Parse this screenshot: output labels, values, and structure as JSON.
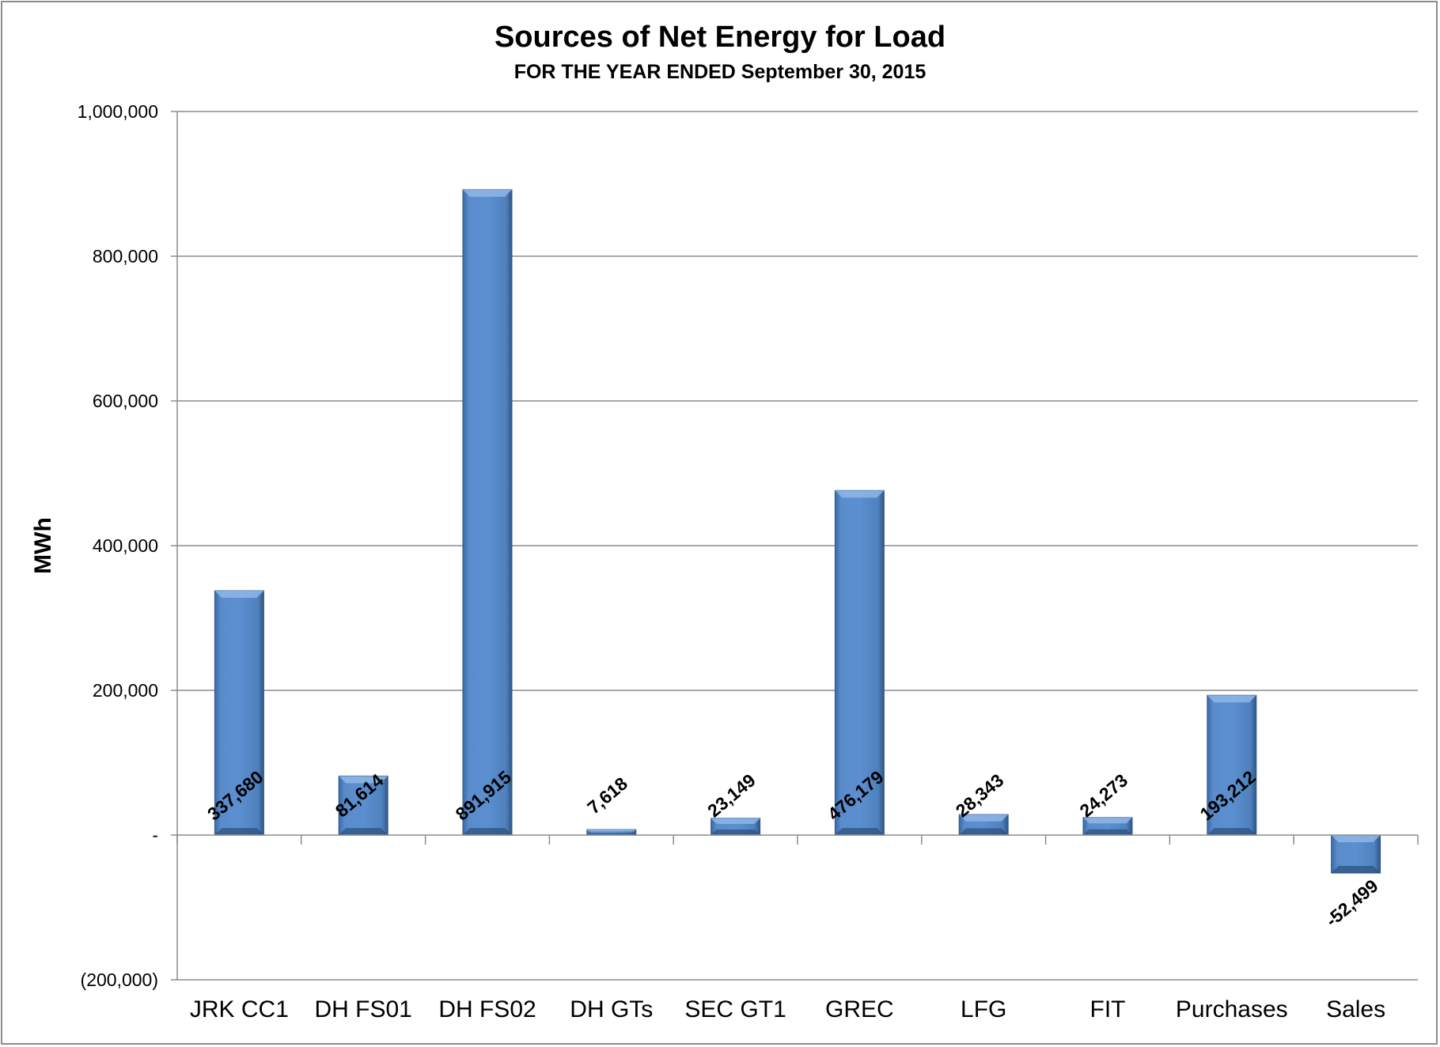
{
  "chart_data": {
    "type": "bar",
    "title": "Sources of Net Energy for Load",
    "subtitle": "FOR THE YEAR ENDED September 30, 2015",
    "ylabel": "MWh",
    "xlabel": "",
    "ylim": [
      -200000,
      1000000
    ],
    "yticks": [
      1000000,
      800000,
      600000,
      400000,
      200000,
      0,
      -200000
    ],
    "ytick_labels": [
      "1,000,000",
      "800,000",
      "600,000",
      "400,000",
      "200,000",
      "-",
      "(200,000)"
    ],
    "categories": [
      "JRK CC1",
      "DH FS01",
      "DH FS02",
      "DH GTs",
      "SEC GT1",
      "GREC",
      "LFG",
      "FIT",
      "Purchases",
      "Sales"
    ],
    "values": [
      337680,
      81614,
      891915,
      7618,
      23149,
      476179,
      28343,
      24273,
      193212,
      -52499
    ],
    "data_labels": [
      "337,680",
      "81,614",
      "891,915",
      "7,618",
      "23,149",
      "476,179",
      "28,343",
      "24,273",
      "193,212",
      "-52,499"
    ],
    "grid": true,
    "legend": "none",
    "colors": {
      "bar": "#4f81bd",
      "bar_light": "#6f9fd8",
      "bar_dark": "#2f5a8f",
      "grid": "#8c8c8c"
    }
  }
}
